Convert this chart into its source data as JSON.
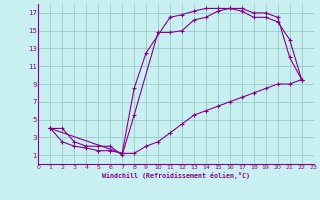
{
  "xlabel": "Windchill (Refroidissement éolien,°C)",
  "bg_color": "#c8f0f0",
  "line_color": "#880088",
  "grid_color": "#99cccc",
  "xlim": [
    0,
    23
  ],
  "ylim": [
    0,
    18
  ],
  "xticks": [
    0,
    1,
    2,
    3,
    4,
    5,
    6,
    7,
    8,
    9,
    10,
    11,
    12,
    13,
    14,
    15,
    16,
    17,
    18,
    19,
    20,
    21,
    22,
    23
  ],
  "yticks": [
    1,
    3,
    5,
    7,
    9,
    11,
    13,
    15,
    17
  ],
  "curve1_x": [
    1,
    2,
    3,
    4,
    5,
    6,
    7,
    8,
    10,
    11,
    12,
    13,
    14,
    15,
    16,
    17,
    18,
    19,
    20,
    21,
    22
  ],
  "curve1_y": [
    4,
    4,
    2.5,
    2,
    2,
    2,
    1,
    5.5,
    14.8,
    14.8,
    15,
    16.2,
    16.5,
    17.2,
    17.5,
    17.5,
    17,
    17,
    16.5,
    12,
    9.5
  ],
  "curve2_x": [
    1,
    2,
    3,
    4,
    5,
    6,
    7,
    8,
    9,
    10,
    11,
    12,
    13,
    14,
    15,
    16,
    17,
    18,
    19,
    20,
    21,
    22
  ],
  "curve2_y": [
    4,
    2.5,
    2,
    1.8,
    1.5,
    1.5,
    1.2,
    1.2,
    2,
    2.5,
    3.5,
    4.5,
    5.5,
    6,
    6.5,
    7,
    7.5,
    8,
    8.5,
    9,
    9,
    9.5
  ],
  "curve3_x": [
    1,
    7,
    8,
    9,
    11,
    12,
    13,
    14,
    15,
    16,
    17,
    18,
    19,
    20,
    21,
    22
  ],
  "curve3_y": [
    4,
    1.2,
    8.5,
    12.5,
    16.5,
    16.8,
    17.2,
    17.5,
    17.5,
    17.5,
    17.2,
    16.5,
    16.5,
    16,
    14,
    9.5
  ]
}
